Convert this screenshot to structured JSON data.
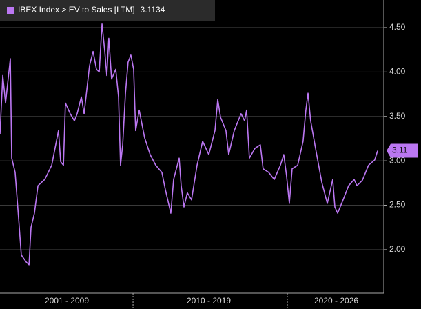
{
  "chart_data": {
    "type": "line",
    "xlim": [
      2001.38,
      2026.25
    ],
    "ylim": [
      1.51,
      4.81
    ],
    "yticks": [
      {
        "value": 2.0,
        "label": "2.00"
      },
      {
        "value": 2.5,
        "label": "2.50"
      },
      {
        "value": 3.0,
        "label": "3.00"
      },
      {
        "value": 3.5,
        "label": "3.50"
      },
      {
        "value": 4.0,
        "label": "4.00"
      },
      {
        "value": 4.5,
        "label": "4.50"
      }
    ],
    "xticks": [
      {
        "value": 2005.71,
        "label": "2001 - 2009"
      },
      {
        "value": 2014.91,
        "label": "2010 - 2019"
      },
      {
        "value": 2023.17,
        "label": "2020 - 2026"
      }
    ],
    "x_separators": [
      2010,
      2020
    ],
    "grid": true,
    "x": [
      2001.38,
      2001.56,
      2001.74,
      2002.05,
      2002.14,
      2002.36,
      2002.63,
      2002.76,
      2003.08,
      2003.26,
      2003.39,
      2003.61,
      2003.84,
      2004.28,
      2004.73,
      2005.17,
      2005.31,
      2005.49,
      2005.62,
      2005.93,
      2006.2,
      2006.38,
      2006.65,
      2006.83,
      2007.18,
      2007.41,
      2007.63,
      2007.81,
      2007.99,
      2008.17,
      2008.3,
      2008.43,
      2008.61,
      2008.88,
      2009.06,
      2009.19,
      2009.33,
      2009.51,
      2009.68,
      2009.86,
      2010.04,
      2010.17,
      2010.4,
      2010.75,
      2011.11,
      2011.47,
      2011.87,
      2012.09,
      2012.45,
      2012.63,
      2012.99,
      2013.12,
      2013.3,
      2013.52,
      2013.79,
      2014.15,
      2014.51,
      2014.91,
      2015.31,
      2015.49,
      2015.67,
      2016.02,
      2016.2,
      2016.56,
      2017.0,
      2017.23,
      2017.36,
      2017.54,
      2017.9,
      2018.25,
      2018.43,
      2018.79,
      2019.15,
      2019.55,
      2019.77,
      2019.95,
      2020.13,
      2020.31,
      2020.67,
      2021.02,
      2021.2,
      2021.34,
      2021.51,
      2021.87,
      2022.23,
      2022.59,
      2022.94,
      2023.08,
      2023.26,
      2023.61,
      2023.97,
      2024.33,
      2024.51,
      2024.86,
      2025.26,
      2025.66,
      2025.85
    ],
    "series": [
      {
        "name": "IBEX Index > EV to Sales [LTM]",
        "color": "#bb77f2",
        "values": [
          3.3,
          3.96,
          3.65,
          4.15,
          3.03,
          2.87,
          2.25,
          1.94,
          1.86,
          1.83,
          2.25,
          2.41,
          2.72,
          2.79,
          2.95,
          3.34,
          2.99,
          2.95,
          3.65,
          3.53,
          3.45,
          3.53,
          3.72,
          3.53,
          4.07,
          4.23,
          4.03,
          4.0,
          4.54,
          4.23,
          3.96,
          4.38,
          3.92,
          4.03,
          3.72,
          2.95,
          3.18,
          3.76,
          4.11,
          4.19,
          4.03,
          3.34,
          3.57,
          3.26,
          3.07,
          2.95,
          2.87,
          2.68,
          2.41,
          2.79,
          3.03,
          2.72,
          2.48,
          2.64,
          2.56,
          2.95,
          3.22,
          3.07,
          3.34,
          3.69,
          3.49,
          3.34,
          3.07,
          3.34,
          3.53,
          3.45,
          3.57,
          3.03,
          3.14,
          3.18,
          2.91,
          2.87,
          2.79,
          2.95,
          3.07,
          2.83,
          2.52,
          2.91,
          2.95,
          3.22,
          3.57,
          3.76,
          3.45,
          3.1,
          2.76,
          2.52,
          2.79,
          2.48,
          2.41,
          2.56,
          2.72,
          2.79,
          2.72,
          2.78,
          2.95,
          3.01,
          3.1134
        ],
        "value_labels": [
          null,
          null,
          null,
          null,
          null,
          null,
          null,
          null,
          null,
          null,
          null,
          null,
          null,
          null,
          null,
          null,
          null,
          null,
          null,
          null,
          null,
          null,
          null,
          null,
          null,
          null,
          null,
          null,
          null,
          null,
          null,
          null,
          null,
          null,
          null,
          null,
          null,
          null,
          null,
          null,
          null,
          null,
          null,
          null,
          null,
          null,
          null,
          null,
          null,
          null,
          null,
          null,
          null,
          null,
          null,
          null,
          null,
          null,
          null,
          null,
          null,
          null,
          null,
          null,
          null,
          null,
          null,
          null,
          null,
          null,
          null,
          null,
          null,
          null,
          null,
          null,
          null,
          null,
          null,
          null,
          null,
          null,
          null,
          null,
          null,
          null,
          null,
          null,
          null,
          null,
          null,
          null,
          null,
          null,
          null,
          null,
          "3.11"
        ]
      }
    ]
  }
}
